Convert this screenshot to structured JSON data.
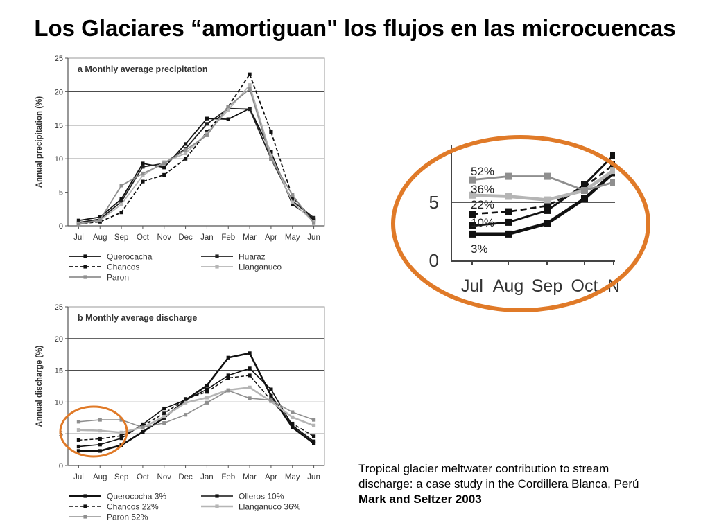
{
  "slide": {
    "title": "Los Glaciares “amortiguan\"  los flujos en las microcuencas",
    "citation": {
      "line1": "Tropical glacier  meltwater  contribution to stream",
      "line2": " discharge: a case study in the Cordillera Blanca, Perú",
      "line3": "Mark and Seltzer 2003"
    }
  },
  "chart_data": [
    {
      "type": "line",
      "title": "a  Monthly average precipitation",
      "ylabel": "Annual precipitation (%)",
      "xlabel": "",
      "categories": [
        "Jul",
        "Aug",
        "Sep",
        "Oct",
        "Nov",
        "Dec",
        "Jan",
        "Feb",
        "Mar",
        "Apr",
        "May",
        "Jun"
      ],
      "ylim": [
        0,
        25
      ],
      "yticks": [
        0,
        5,
        10,
        15,
        20,
        25
      ],
      "grid": "horizontal at 10, 15, 20",
      "legend": "bottom",
      "series": [
        {
          "name": "Querocacha",
          "color": "#111111",
          "dash": "none",
          "values": [
            0.8,
            1.3,
            4.0,
            9.3,
            8.7,
            12.2,
            16.0,
            15.9,
            17.5,
            11.0,
            3.2,
            1.0
          ]
        },
        {
          "name": "Huaraz",
          "color": "#222222",
          "dash": "none",
          "values": [
            0.5,
            1.0,
            3.6,
            8.8,
            9.3,
            11.5,
            15.2,
            17.5,
            17.4,
            10.0,
            3.7,
            1.2
          ]
        },
        {
          "name": "Chancos",
          "color": "#111111",
          "dash": "dash",
          "values": [
            0.3,
            0.6,
            2.0,
            6.6,
            7.6,
            10.0,
            14.0,
            17.8,
            22.6,
            14.0,
            4.3,
            0.8
          ]
        },
        {
          "name": "Llanganuco",
          "color": "#b5b5b5",
          "dash": "none",
          "values": [
            0.3,
            0.8,
            3.2,
            7.5,
            9.5,
            10.8,
            13.8,
            17.3,
            21.0,
            10.5,
            3.5,
            0.6
          ]
        },
        {
          "name": "Paron",
          "color": "#8f8f8f",
          "dash": "none",
          "values": [
            0.2,
            0.9,
            6.0,
            7.8,
            9.3,
            11.3,
            13.5,
            17.8,
            20.4,
            10.0,
            4.6,
            0.4
          ]
        }
      ]
    },
    {
      "type": "line",
      "title": "b Monthly average discharge",
      "ylabel": "Annual discharge (%)",
      "xlabel": "",
      "categories": [
        "Jul",
        "Aug",
        "Sep",
        "Oct",
        "Nov",
        "Dec",
        "Jan",
        "Feb",
        "Mar",
        "Apr",
        "May",
        "Jun"
      ],
      "ylim": [
        0,
        25
      ],
      "yticks": [
        0,
        5,
        10,
        15,
        20,
        25
      ],
      "grid": "horizontal at 5, 10, 15, 20",
      "legend": "bottom",
      "series": [
        {
          "name": "Querococha 3%",
          "color": "#111111",
          "dash": "none",
          "width": 2.6,
          "values": [
            2.3,
            2.3,
            3.2,
            5.3,
            7.5,
            10.3,
            12.6,
            17.0,
            17.7,
            11.0,
            6.0,
            3.5
          ]
        },
        {
          "name": "Olleros 10%",
          "color": "#111111",
          "dash": "none",
          "width": 1.6,
          "values": [
            3.0,
            3.3,
            4.3,
            6.5,
            9.0,
            10.3,
            12.0,
            14.2,
            15.3,
            12.0,
            6.3,
            3.8
          ]
        },
        {
          "name": "Chancos 22%",
          "color": "#111111",
          "dash": "dash",
          "width": 1.5,
          "values": [
            4.0,
            4.2,
            4.7,
            6.3,
            8.2,
            10.5,
            11.6,
            13.8,
            14.2,
            10.3,
            6.6,
            4.6
          ]
        },
        {
          "name": "Llanganuco 36%",
          "color": "#b5b5b5",
          "dash": "none",
          "width": 2.6,
          "values": [
            5.6,
            5.5,
            5.2,
            6.0,
            7.7,
            9.9,
            10.7,
            11.9,
            12.3,
            10.1,
            7.6,
            6.3
          ]
        },
        {
          "name": "Paron 52%",
          "color": "#8f8f8f",
          "dash": "none",
          "width": 1.6,
          "values": [
            6.9,
            7.2,
            7.2,
            6.0,
            6.7,
            8.0,
            9.9,
            11.8,
            10.6,
            10.3,
            8.4,
            7.2
          ]
        }
      ]
    }
  ],
  "zoom_inset": {
    "categories": [
      "Jul",
      "Aug",
      "Sep",
      "Oct",
      "N"
    ],
    "yticks": [
      "0",
      "5"
    ],
    "percent_labels": [
      "52%",
      "36%",
      "22%",
      "10%",
      "3%"
    ],
    "highlight_color": "#e07a28"
  }
}
